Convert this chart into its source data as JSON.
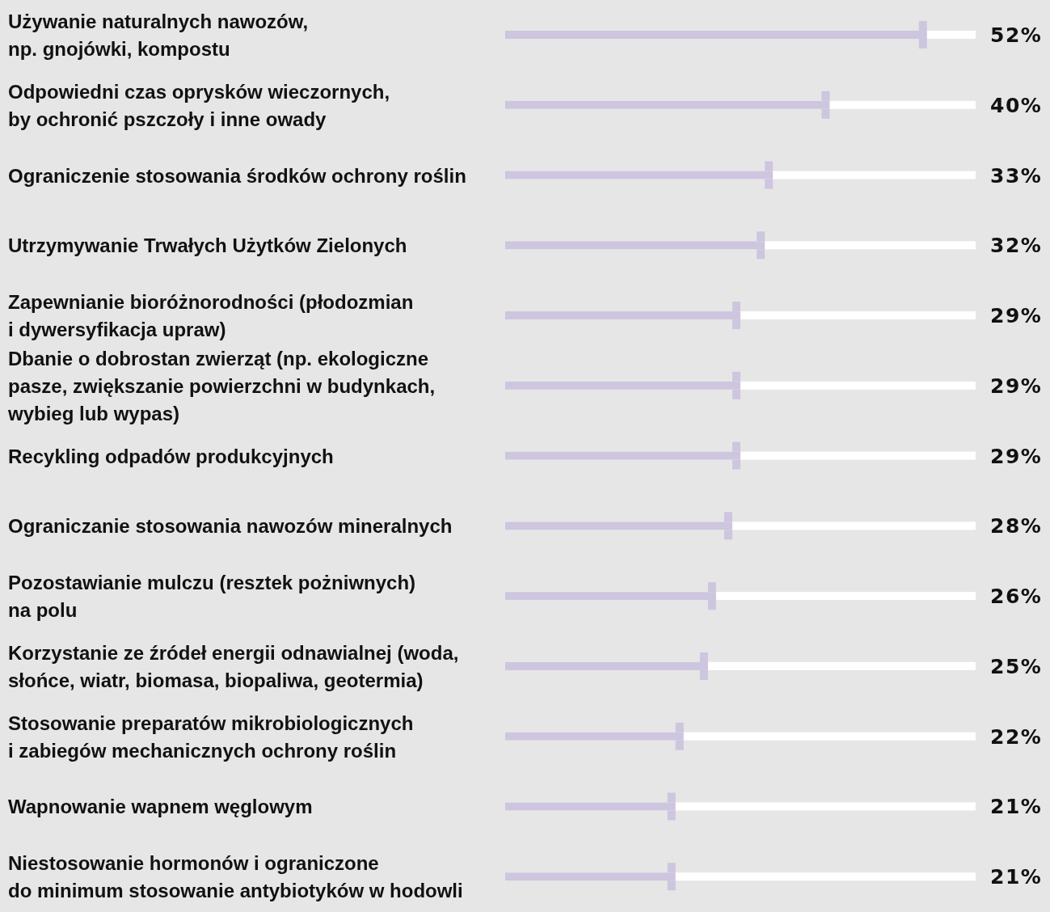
{
  "chart_data": {
    "type": "bar",
    "orientation": "horizontal",
    "categories": [
      "Używanie naturalnych nawozów,\nnp. gnojówki, kompostu",
      "Odpowiedni czas oprysków wieczornych,\nby ochronić pszczoły i inne owady",
      "Ograniczenie stosowania środków ochrony roślin",
      "Utrzymywanie Trwałych Użytków Zielonych",
      "Zapewnianie bioróżnorodności (płodozmian\ni dywersyfikacja upraw)",
      "Dbanie o dobrostan zwierząt (np. ekologiczne\npasze, zwiększanie powierzchni w budynkach,\nwybieg lub wypas)",
      "Recykling odpadów produkcyjnych",
      "Ograniczanie stosowania nawozów mineralnych",
      "Pozostawianie mulczu (resztek pożniwnych)\nna polu",
      "Korzystanie ze źródeł energii odnawialnej (woda,\nsłońce, wiatr, biomasa, biopaliwa, geotermia)",
      "Stosowanie preparatów mikrobiologicznych\ni zabiegów mechanicznych ochrony roślin",
      "Wapnowanie wapnem węglowym",
      "Niestosowanie hormonów i ograniczone\ndo minimum stosowanie antybiotyków w hodowli"
    ],
    "values": [
      52,
      40,
      33,
      32,
      29,
      29,
      29,
      28,
      26,
      25,
      22,
      21,
      21
    ],
    "value_labels": [
      "52%",
      "40%",
      "33%",
      "32%",
      "29%",
      "29%",
      "29%",
      "28%",
      "26%",
      "25%",
      "22%",
      "21%",
      "21%"
    ],
    "color": "#cec5df",
    "xlim": [
      0,
      58
    ],
    "tick_labels": "y"
  }
}
